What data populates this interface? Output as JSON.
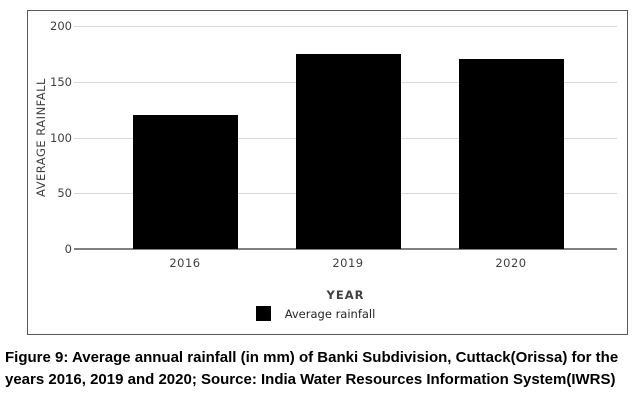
{
  "chart_data": {
    "type": "bar",
    "categories": [
      "2016",
      "2019",
      "2020"
    ],
    "values": [
      120,
      175,
      170
    ],
    "title": "",
    "xlabel": "YEAR",
    "ylabel": "AVERAGE RAINFALL",
    "ylim": [
      0,
      200
    ],
    "yticks": [
      0,
      50,
      100,
      150,
      200
    ],
    "grid": true,
    "bar_color": "#000000",
    "legend": [
      {
        "label": "Average rainfall",
        "color": "#000000"
      }
    ],
    "legend_position": "bottom",
    "colors": {
      "grid": "#d9d9d9",
      "axis": "#808080",
      "tick_text": "#404040",
      "border": "#595959"
    }
  },
  "caption": {
    "line1": "Figure 9: Average annual rainfall (in mm) of Banki Subdivision, Cuttack(Orissa) for the",
    "line2": "years 2016, 2019 and 2020; Source: India Water Resources Information System(IWRS)"
  }
}
